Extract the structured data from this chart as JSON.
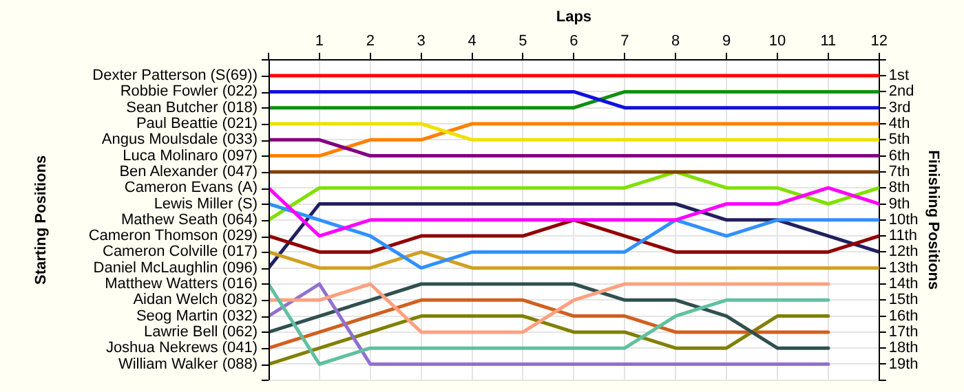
{
  "chart_data": {
    "type": "line",
    "xlabel": "Laps",
    "ylabel": "Finishing Positions",
    "annotations": [
      "Starting Positions"
    ],
    "x": [
      0,
      1,
      2,
      3,
      4,
      5,
      6,
      7,
      8,
      9,
      10,
      11,
      12
    ],
    "xlim": [
      0,
      12
    ],
    "xticks": [
      {
        "value": 0,
        "label": null
      },
      1,
      2,
      3,
      4,
      5,
      6,
      7,
      8,
      9,
      10,
      11,
      12
    ],
    "ylim": [
      20,
      0
    ],
    "yticks": [
      {
        "value": 0,
        "label": null
      },
      {
        "value": 1,
        "label": "1st"
      },
      {
        "value": 2,
        "label": "2nd"
      },
      {
        "value": 3,
        "label": "3rd"
      },
      {
        "value": 4,
        "label": "4th"
      },
      {
        "value": 5,
        "label": "5th"
      },
      {
        "value": 6,
        "label": "6th"
      },
      {
        "value": 7,
        "label": "7th"
      },
      {
        "value": 8,
        "label": "8th"
      },
      {
        "value": 9,
        "label": "9th"
      },
      {
        "value": 10,
        "label": "10th"
      },
      {
        "value": 11,
        "label": "11th"
      },
      {
        "value": 12,
        "label": "12th"
      },
      {
        "value": 13,
        "label": "13th"
      },
      {
        "value": 14,
        "label": "14th"
      },
      {
        "value": 15,
        "label": "15th"
      },
      {
        "value": 16,
        "label": "16th"
      },
      {
        "value": 17,
        "label": "17th"
      },
      {
        "value": 18,
        "label": "18th"
      },
      {
        "value": 19,
        "label": "19th"
      },
      {
        "value": 20,
        "label": null
      }
    ],
    "grid": true,
    "legend": false,
    "marker": "none",
    "line_style": "solid",
    "series": [
      {
        "name": "Dexter Patterson (S(69))",
        "color": "#ff0000",
        "values": [
          1,
          1,
          1,
          1,
          1,
          1,
          1,
          1,
          1,
          1,
          1,
          1,
          1
        ]
      },
      {
        "name": "Robbie Fowler (022)",
        "color": "#1010e0",
        "values": [
          2,
          2,
          2,
          2,
          2,
          2,
          2,
          3,
          3,
          3,
          3,
          3,
          3
        ]
      },
      {
        "name": "Sean Butcher (018)",
        "color": "#109010",
        "values": [
          3,
          3,
          3,
          3,
          3,
          3,
          3,
          2,
          2,
          2,
          2,
          2,
          2
        ]
      },
      {
        "name": "Paul Beattie (021)",
        "color": "#f0e000",
        "values": [
          4,
          4,
          4,
          4,
          5,
          5,
          5,
          5,
          5,
          5,
          5,
          5,
          5
        ]
      },
      {
        "name": "Angus Moulsdale (033)",
        "color": "#800080",
        "values": [
          5,
          5,
          6,
          6,
          6,
          6,
          6,
          6,
          6,
          6,
          6,
          6,
          6
        ]
      },
      {
        "name": "Luca Molinaro (097)",
        "color": "#ff8000",
        "values": [
          6,
          6,
          5,
          5,
          4,
          4,
          4,
          4,
          4,
          4,
          4,
          4,
          4
        ]
      },
      {
        "name": "Ben Alexander (047)",
        "color": "#804000",
        "values": [
          7,
          7,
          7,
          7,
          7,
          7,
          7,
          7,
          7,
          7,
          7,
          7,
          7
        ]
      },
      {
        "name": "Cameron Evans (A)",
        "color": "#ff00ff",
        "values": [
          8,
          11,
          10,
          10,
          10,
          10,
          10,
          10,
          10,
          9,
          9,
          8,
          9
        ]
      },
      {
        "name": "Lewis Miller (S)",
        "color": "#3090ff",
        "values": [
          9,
          10,
          11,
          13,
          12,
          12,
          12,
          12,
          10,
          11,
          10,
          10,
          10
        ]
      },
      {
        "name": "Mathew Seath (064)",
        "color": "#80e000",
        "values": [
          10,
          8,
          8,
          8,
          8,
          8,
          8,
          8,
          7,
          8,
          8,
          9,
          8
        ]
      },
      {
        "name": "Cameron Thomson (029)",
        "color": "#900000",
        "values": [
          11,
          12,
          12,
          11,
          11,
          11,
          10,
          11,
          12,
          12,
          12,
          12,
          11
        ]
      },
      {
        "name": "Cameron Colville (017)",
        "color": "#d0a020",
        "values": [
          12,
          13,
          13,
          12,
          13,
          13,
          13,
          13,
          13,
          13,
          13,
          13,
          13
        ]
      },
      {
        "name": "Daniel McLaughlin (096)",
        "color": "#202060",
        "values": [
          13,
          9,
          9,
          9,
          9,
          9,
          9,
          9,
          9,
          10,
          10,
          11,
          12
        ]
      },
      {
        "name": "Matthew Watters (016)",
        "color": "#60c0a0",
        "values": [
          14,
          19,
          18,
          18,
          18,
          18,
          18,
          18,
          16,
          15,
          15,
          15,
          null
        ]
      },
      {
        "name": "Aidan Welch (082)",
        "color": "#ffa080",
        "values": [
          15,
          15,
          14,
          17,
          17,
          17,
          15,
          14,
          14,
          14,
          14,
          14,
          null
        ]
      },
      {
        "name": "Seog Martin (032)",
        "color": "#9070d0",
        "values": [
          16,
          14,
          19,
          19,
          19,
          19,
          19,
          19,
          19,
          19,
          19,
          19,
          null
        ]
      },
      {
        "name": "Lawrie Bell (062)",
        "color": "#305050",
        "values": [
          17,
          16,
          15,
          14,
          14,
          14,
          14,
          15,
          15,
          16,
          18,
          18,
          null
        ]
      },
      {
        "name": "Joshua Nekrews (041)",
        "color": "#d06020",
        "values": [
          18,
          17,
          16,
          15,
          15,
          15,
          16,
          16,
          17,
          17,
          17,
          17,
          null
        ]
      },
      {
        "name": "William Walker (088)",
        "color": "#808000",
        "values": [
          19,
          18,
          17,
          16,
          16,
          16,
          17,
          17,
          18,
          18,
          16,
          16,
          null
        ]
      }
    ]
  }
}
